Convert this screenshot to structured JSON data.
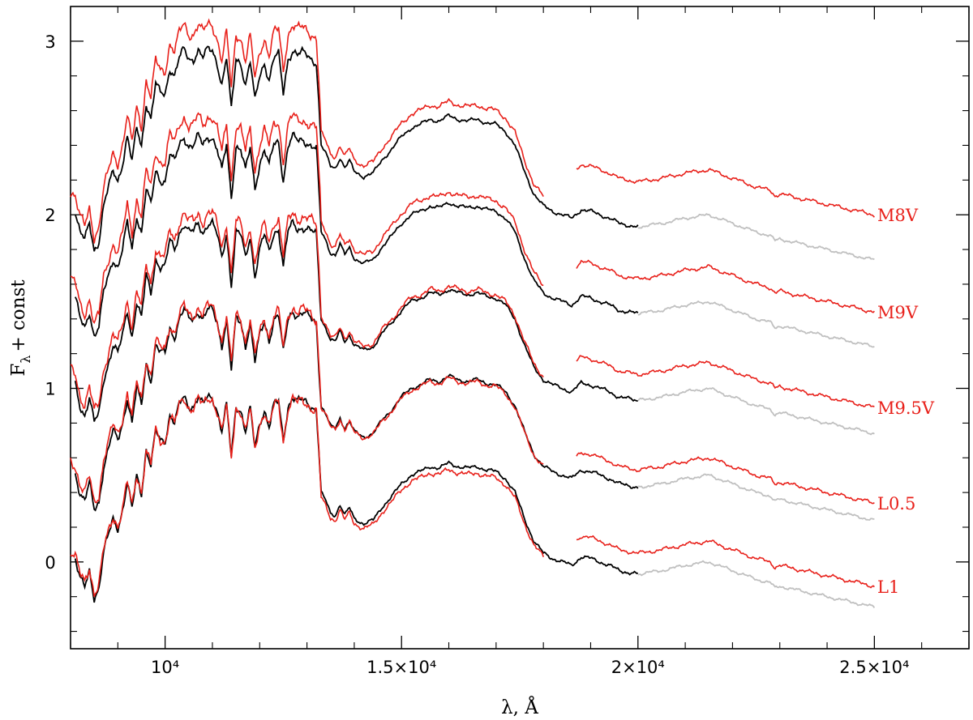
{
  "chart_data": {
    "type": "line",
    "xlabel": "λ, Å",
    "ylabel_main": "F",
    "ylabel_sub": "λ",
    "ylabel_rest": "+ const",
    "xlim": [
      8000,
      27000
    ],
    "ylim": [
      -0.5,
      3.2
    ],
    "x_ticks": [
      {
        "value": 10000,
        "label": "10⁴"
      },
      {
        "value": 15000,
        "label": "1.5×10⁴"
      },
      {
        "value": 20000,
        "label": "2×10⁴"
      },
      {
        "value": 25000,
        "label": "2.5×10⁴"
      }
    ],
    "y_ticks": [
      {
        "value": 0,
        "label": "0"
      },
      {
        "value": 1,
        "label": "1"
      },
      {
        "value": 2,
        "label": "2"
      },
      {
        "value": 3,
        "label": "3"
      }
    ],
    "colors": {
      "observed": "#e8201a",
      "model": "#000000",
      "model_extension": "#c0c0c0"
    },
    "base_shape": {
      "x": [
        8000,
        8100,
        8200,
        8300,
        8400,
        8500,
        8600,
        8700,
        8800,
        8900,
        9000,
        9100,
        9200,
        9300,
        9400,
        9500,
        9600,
        9700,
        9800,
        9900,
        10000,
        10100,
        10200,
        10300,
        10400,
        10500,
        10600,
        10700,
        10800,
        10900,
        11000,
        11100,
        11200,
        11300,
        11400,
        11500,
        11600,
        11700,
        11800,
        11900,
        12000,
        12100,
        12200,
        12300,
        12400,
        12500,
        12600,
        12700,
        12800,
        12900,
        13000,
        13100,
        13200,
        13300,
        13400,
        13500,
        13600,
        13700,
        13800,
        13900,
        14000,
        14200,
        14400,
        14600,
        14800,
        15000,
        15200,
        15400,
        15600,
        15800,
        16000,
        16200,
        16400,
        16600,
        16800,
        17000,
        17200,
        17400,
        17600,
        17800,
        18000,
        18200,
        18400,
        18600,
        18800,
        19000,
        19200,
        19400,
        19600,
        19800,
        20000,
        20500,
        21000,
        21500,
        22000,
        22500,
        22800,
        22900,
        23000,
        23500,
        24000,
        24500,
        25000
      ],
      "y": [
        0.05,
        0.02,
        -0.1,
        -0.15,
        -0.05,
        -0.2,
        -0.15,
        0.05,
        0.15,
        0.25,
        0.2,
        0.3,
        0.45,
        0.3,
        0.5,
        0.4,
        0.65,
        0.55,
        0.75,
        0.7,
        0.7,
        0.85,
        0.8,
        0.9,
        0.95,
        0.9,
        0.9,
        0.95,
        0.9,
        0.95,
        0.95,
        0.88,
        0.75,
        0.9,
        0.6,
        0.9,
        0.88,
        0.75,
        0.88,
        0.65,
        0.8,
        0.88,
        0.78,
        0.9,
        0.92,
        0.7,
        0.9,
        0.95,
        0.92,
        0.93,
        0.92,
        0.9,
        0.88,
        0.4,
        0.35,
        0.28,
        0.27,
        0.33,
        0.27,
        0.31,
        0.25,
        0.22,
        0.24,
        0.32,
        0.38,
        0.45,
        0.5,
        0.52,
        0.55,
        0.54,
        0.57,
        0.55,
        0.54,
        0.55,
        0.53,
        0.52,
        0.48,
        0.4,
        0.25,
        0.12,
        0.05,
        0.02,
        0.0,
        -0.02,
        0.03,
        0.02,
        0.0,
        -0.02,
        -0.05,
        -0.06,
        -0.07,
        -0.05,
        -0.02,
        0.0,
        -0.05,
        -0.1,
        -0.12,
        -0.15,
        -0.14,
        -0.17,
        -0.2,
        -0.23,
        -0.26
      ]
    },
    "series": [
      {
        "label": "M8V",
        "offset": 2.0,
        "red_scale": 1.06,
        "red_offset": 0.05,
        "gap": [
          18000,
          18700
        ],
        "ir_red_offset": 0.26
      },
      {
        "label": "M9V",
        "offset": 1.5,
        "red_scale": 1.04,
        "red_offset": 0.04,
        "gap": [
          18000,
          18700
        ],
        "ir_red_offset": 0.2
      },
      {
        "label": "M9.5V",
        "offset": 1.0,
        "red_scale": 1.0,
        "red_offset": 0.02,
        "gap": [
          18000,
          18700
        ],
        "ir_red_offset": 0.15
      },
      {
        "label": "L0.5",
        "offset": 0.5,
        "red_scale": 0.98,
        "red_offset": 0.0,
        "gap": [
          18000,
          18700
        ],
        "ir_red_offset": 0.1
      },
      {
        "label": "L1",
        "offset": 0.0,
        "red_scale": 0.97,
        "red_offset": -0.02,
        "gap": [
          18000,
          18700
        ],
        "ir_red_offset": 0.12
      }
    ]
  }
}
